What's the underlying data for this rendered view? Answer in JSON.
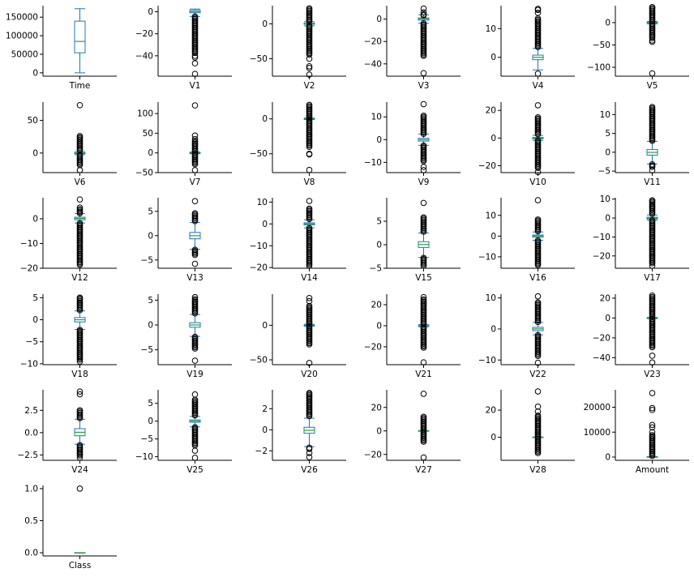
{
  "colors": {
    "box": "#1f77b4",
    "median": "#2ca02c",
    "flier": "#000000",
    "axis": "#000000"
  },
  "chart_data": [
    {
      "type": "box",
      "xlabel": "Time",
      "ylim": [
        -9000,
        181000
      ],
      "yticks": [
        0,
        50000,
        100000,
        150000
      ],
      "ytick_labels": [
        "0",
        "50000",
        "100000",
        "150000"
      ],
      "box": {
        "whislo": 0,
        "q1": 54000,
        "med": 84700,
        "q3": 139300,
        "whishi": 172800
      },
      "fliers": []
    },
    {
      "type": "box",
      "xlabel": "V1",
      "ylim": [
        -58.5,
        5.5
      ],
      "yticks": [
        0,
        -20,
        -40
      ],
      "ytick_labels": [
        "0",
        "−20",
        "−40"
      ],
      "box": {
        "whislo": -4.3,
        "q1": -0.92,
        "med": 0.02,
        "q3": 1.32,
        "whishi": 2.45
      },
      "fliers": [
        -56.4,
        -46.8,
        -41.5,
        -40
      ],
      "flier_ranges": [
        [
          -38,
          -4.4
        ]
      ]
    },
    {
      "type": "box",
      "xlabel": "V2",
      "ylim": [
        -75,
        26
      ],
      "yticks": [
        0,
        -50
      ],
      "ytick_labels": [
        "0",
        "−50"
      ],
      "box": {
        "whislo": -2.9,
        "q1": -0.6,
        "med": 0.07,
        "q3": 0.8,
        "whishi": 3.0
      },
      "fliers": [
        -72.7,
        -63.3,
        -60.8,
        -50
      ],
      "flier_ranges": [
        [
          -45,
          -3
        ],
        [
          3.1,
          22.1
        ]
      ]
    },
    {
      "type": "box",
      "xlabel": "V3",
      "ylim": [
        -51,
        12
      ],
      "yticks": [
        0,
        -20,
        -40
      ],
      "ytick_labels": [
        "0",
        "−20",
        "−40"
      ],
      "box": {
        "whislo": -3.7,
        "q1": -0.89,
        "med": 0.18,
        "q3": 1.03,
        "whishi": 3.9
      },
      "fliers": [
        -48.3,
        9.4,
        6,
        4.1,
        3.4
      ],
      "flier_ranges": [
        [
          -33,
          -3.8
        ]
      ]
    },
    {
      "type": "box",
      "xlabel": "V4",
      "ylim": [
        -6.6,
        18
      ],
      "yticks": [
        10,
        0
      ],
      "ytick_labels": [
        "10",
        "0"
      ],
      "box": {
        "whislo": -4.4,
        "q1": -0.85,
        "med": -0.02,
        "q3": 0.74,
        "whishi": 3.1
      },
      "fliers": [
        16.9,
        16.5,
        15.5,
        -5.7
      ],
      "flier_ranges": [
        [
          3.2,
          13.5
        ]
      ]
    },
    {
      "type": "box",
      "xlabel": "V5",
      "ylim": [
        -120,
        38
      ],
      "yticks": [
        0,
        -50,
        -100
      ],
      "ytick_labels": [
        "0",
        "−50",
        "−100"
      ],
      "box": {
        "whislo": -2.6,
        "q1": -0.69,
        "med": -0.05,
        "q3": 0.61,
        "whishi": 2.5
      },
      "fliers": [
        -113.7,
        -43,
        -40
      ],
      "flier_ranges": [
        [
          -35,
          -2.7
        ],
        [
          2.6,
          34.8
        ]
      ]
    },
    {
      "type": "box",
      "xlabel": "V6",
      "ylim": [
        -30,
        78
      ],
      "yticks": [
        50,
        0
      ],
      "ytick_labels": [
        "50",
        "0"
      ],
      "box": {
        "whislo": -2.5,
        "q1": -0.77,
        "med": -0.27,
        "q3": 0.4,
        "whishi": 2.2
      },
      "fliers": [
        73.3,
        -26.2
      ],
      "flier_ranges": [
        [
          -20,
          -2.6
        ],
        [
          2.3,
          26
        ]
      ]
    },
    {
      "type": "box",
      "xlabel": "V7",
      "ylim": [
        -50,
        129
      ],
      "yticks": [
        100,
        50,
        0,
        -50
      ],
      "ytick_labels": [
        "100",
        "50",
        "0",
        "−50"
      ],
      "box": {
        "whislo": -2.2,
        "q1": -0.55,
        "med": 0.04,
        "q3": 0.57,
        "whishi": 2.3
      },
      "fliers": [
        120.6,
        44,
        35,
        -43.6
      ],
      "flier_ranges": [
        [
          -30,
          -2.3
        ],
        [
          2.4,
          30
        ]
      ]
    },
    {
      "type": "box",
      "xlabel": "V8",
      "ylim": [
        -77,
        24
      ],
      "yticks": [
        0,
        -50
      ],
      "ytick_labels": [
        "0",
        "−50"
      ],
      "box": {
        "whislo": -1.0,
        "q1": -0.21,
        "med": 0.02,
        "q3": 0.33,
        "whishi": 1.1
      },
      "fliers": [
        -73.2,
        -50.9,
        -50
      ],
      "flier_ranges": [
        [
          -41,
          -1.1
        ],
        [
          1.2,
          20
        ]
      ]
    },
    {
      "type": "box",
      "xlabel": "V9",
      "ylim": [
        -14.5,
        16.5
      ],
      "yticks": [
        10,
        0,
        -10
      ],
      "ytick_labels": [
        "10",
        "0",
        "−10"
      ],
      "box": {
        "whislo": -2.5,
        "q1": -0.64,
        "med": -0.05,
        "q3": 0.6,
        "whishi": 2.45
      },
      "fliers": [
        15.6,
        -13.4,
        -12
      ],
      "flier_ranges": [
        [
          -10,
          -2.6
        ],
        [
          2.5,
          10.5
        ]
      ]
    },
    {
      "type": "box",
      "xlabel": "V10",
      "ylim": [
        -25,
        26
      ],
      "yticks": [
        20,
        0,
        -20
      ],
      "ytick_labels": [
        "20",
        "0",
        "−20"
      ],
      "box": {
        "whislo": -1.7,
        "q1": -0.54,
        "med": -0.09,
        "q3": 0.45,
        "whishi": 1.9
      },
      "fliers": [
        23.7,
        -24.6
      ],
      "flier_ranges": [
        [
          -22,
          -1.8
        ],
        [
          2,
          15
        ]
      ]
    },
    {
      "type": "box",
      "xlabel": "V11",
      "ylim": [
        -5.4,
        13.3
      ],
      "yticks": [
        10,
        5,
        0,
        -5
      ],
      "ytick_labels": [
        "10",
        "5",
        "0",
        "−5"
      ],
      "box": {
        "whislo": -3.1,
        "q1": -0.76,
        "med": -0.03,
        "q3": 0.74,
        "whishi": 2.9
      },
      "fliers": [
        -4.8
      ],
      "flier_ranges": [
        [
          -4.2,
          -3.2
        ],
        [
          3,
          12
        ]
      ]
    },
    {
      "type": "box",
      "xlabel": "V12",
      "ylim": [
        -20,
        8.5
      ],
      "yticks": [
        0,
        -10,
        -20
      ],
      "ytick_labels": [
        "0",
        "−10",
        "−20"
      ],
      "box": {
        "whislo": -1.7,
        "q1": -0.4,
        "med": 0.14,
        "q3": 0.62,
        "whishi": 2.1
      },
      "fliers": [
        7.8,
        4.5
      ],
      "flier_ranges": [
        [
          -18.7,
          -1.8
        ],
        [
          2.2,
          3.8
        ]
      ]
    },
    {
      "type": "box",
      "xlabel": "V13",
      "ylim": [
        -6.7,
        7.8
      ],
      "yticks": [
        5,
        0,
        -5
      ],
      "ytick_labels": [
        "5",
        "0",
        "−5"
      ],
      "box": {
        "whislo": -2.8,
        "q1": -0.65,
        "med": -0.01,
        "q3": 0.66,
        "whishi": 2.7
      },
      "fliers": [
        7.1,
        -5.8
      ],
      "flier_ranges": [
        [
          2.9,
          4.6
        ],
        [
          -4.2,
          -2.9
        ]
      ]
    },
    {
      "type": "box",
      "xlabel": "V14",
      "ylim": [
        -20.3,
        12
      ],
      "yticks": [
        10,
        0,
        -10,
        -20
      ],
      "ytick_labels": [
        "10",
        "0",
        "−10",
        "−20"
      ],
      "box": {
        "whislo": -1.8,
        "q1": -0.43,
        "med": 0.05,
        "q3": 0.49,
        "whishi": 1.9
      },
      "fliers": [
        10.5,
        -19.2
      ],
      "flier_ranges": [
        [
          -19,
          -1.9
        ],
        [
          2,
          7
        ]
      ]
    },
    {
      "type": "box",
      "xlabel": "V15",
      "ylim": [
        -5,
        10
      ],
      "yticks": [
        5,
        0,
        -5
      ],
      "ytick_labels": [
        "5",
        "0",
        "−5"
      ],
      "box": {
        "whislo": -2.7,
        "q1": -0.58,
        "med": 0.05,
        "q3": 0.65,
        "whishi": 2.5
      },
      "fliers": [
        8.9
      ],
      "flier_ranges": [
        [
          2.6,
          5.8
        ],
        [
          -4.5,
          -2.8
        ]
      ]
    },
    {
      "type": "box",
      "xlabel": "V16",
      "ylim": [
        -15.5,
        18.5
      ],
      "yticks": [
        10,
        0,
        -10
      ],
      "ytick_labels": [
        "10",
        "0",
        "−10"
      ],
      "box": {
        "whislo": -2.0,
        "q1": -0.47,
        "med": 0.07,
        "q3": 0.52,
        "whishi": 2.0
      },
      "fliers": [
        17.3
      ],
      "flier_ranges": [
        [
          2.1,
          8
        ],
        [
          -14,
          -2.1
        ]
      ]
    },
    {
      "type": "box",
      "xlabel": "V17",
      "ylim": [
        -26.5,
        10.7
      ],
      "yticks": [
        10,
        0,
        -10,
        -20
      ],
      "ytick_labels": [
        "10",
        "0",
        "−10",
        "−20"
      ],
      "box": {
        "whislo": -1.2,
        "q1": -0.48,
        "med": -0.07,
        "q3": 0.4,
        "whishi": 1.6
      },
      "fliers": [
        -25.2,
        9.3
      ],
      "flier_ranges": [
        [
          -24,
          -1.3
        ],
        [
          1.7,
          9
        ]
      ]
    },
    {
      "type": "box",
      "xlabel": "V18",
      "ylim": [
        -10.2,
        5.8
      ],
      "yticks": [
        5,
        0,
        -5,
        -10
      ],
      "ytick_labels": [
        "5",
        "0",
        "−5",
        "−10"
      ],
      "box": {
        "whislo": -2.2,
        "q1": -0.5,
        "med": 0,
        "q3": 0.5,
        "whishi": 2.0
      },
      "fliers": [
        5.0,
        -9.5
      ],
      "flier_ranges": [
        [
          2.1,
          4.8
        ],
        [
          -9.3,
          -2.3
        ]
      ]
    },
    {
      "type": "box",
      "xlabel": "V19",
      "ylim": [
        -8,
        6.2
      ],
      "yticks": [
        5,
        0,
        -5
      ],
      "ytick_labels": [
        "5",
        "0",
        "−5"
      ],
      "box": {
        "whislo": -2.3,
        "q1": -0.46,
        "med": 0.0,
        "q3": 0.46,
        "whishi": 2.1
      },
      "fliers": [
        5.6,
        -7.2
      ],
      "flier_ranges": [
        [
          2.2,
          5.2
        ],
        [
          -5,
          -2.4
        ]
      ]
    },
    {
      "type": "box",
      "xlabel": "V20",
      "ylim": [
        -57,
        45
      ],
      "yticks": [
        0,
        -50
      ],
      "ytick_labels": [
        "0",
        "−50"
      ],
      "box": {
        "whislo": -1.3,
        "q1": -0.21,
        "med": -0.06,
        "q3": 0.13,
        "whishi": 1.4
      },
      "fliers": [
        39.4,
        35,
        -54.5
      ],
      "flier_ranges": [
        [
          1.5,
          28
        ],
        [
          -28,
          -1.4
        ]
      ]
    },
    {
      "type": "box",
      "xlabel": "V21",
      "ylim": [
        -37,
        30
      ],
      "yticks": [
        20,
        0,
        -20
      ],
      "ytick_labels": [
        "20",
        "0",
        "−20"
      ],
      "box": {
        "whislo": -1.0,
        "q1": -0.23,
        "med": -0.03,
        "q3": 0.19,
        "whishi": 1.2
      },
      "fliers": [
        27.2,
        -34.8
      ],
      "flier_ranges": [
        [
          1.3,
          25
        ],
        [
          -22,
          -1.1
        ]
      ]
    },
    {
      "type": "box",
      "xlabel": "V22",
      "ylim": [
        -11.5,
        11.2
      ],
      "yticks": [
        10,
        0,
        -10
      ],
      "ytick_labels": [
        "10",
        "0",
        "−10"
      ],
      "box": {
        "whislo": -1.9,
        "q1": -0.54,
        "med": 0.01,
        "q3": 0.53,
        "whishi": 2.1
      },
      "fliers": [
        10.5,
        -10.9
      ],
      "flier_ranges": [
        [
          2.2,
          8.5
        ],
        [
          -8.9,
          -2
        ]
      ]
    },
    {
      "type": "box",
      "xlabel": "V23",
      "ylim": [
        -47,
        24
      ],
      "yticks": [
        20,
        0,
        -20,
        -40
      ],
      "ytick_labels": [
        "20",
        "0",
        "−20",
        "−40"
      ],
      "box": {
        "whislo": -0.6,
        "q1": -0.16,
        "med": -0.01,
        "q3": 0.15,
        "whishi": 0.6
      },
      "fliers": [
        22.5,
        -44.8,
        -38
      ],
      "flier_ranges": [
        [
          0.7,
          21
        ],
        [
          -30,
          -0.7
        ]
      ]
    },
    {
      "type": "box",
      "xlabel": "V24",
      "ylim": [
        -3.1,
        4.8
      ],
      "yticks": [
        2.5,
        0,
        -2.5
      ],
      "ytick_labels": [
        "2.5",
        "0.0",
        "−2.5"
      ],
      "box": {
        "whislo": -1.3,
        "q1": -0.35,
        "med": 0.04,
        "q3": 0.44,
        "whishi": 1.5
      },
      "fliers": [
        4.6,
        4.3,
        -2.8
      ],
      "flier_ranges": [
        [
          1.6,
          2.5
        ],
        [
          -2.7,
          -1.4
        ]
      ]
    },
    {
      "type": "box",
      "xlabel": "V25",
      "ylim": [
        -11,
        8.8
      ],
      "yticks": [
        5,
        0,
        -5,
        -10
      ],
      "ytick_labels": [
        "5",
        "0",
        "−5",
        "−10"
      ],
      "box": {
        "whislo": -1.6,
        "q1": -0.32,
        "med": 0.02,
        "q3": 0.35,
        "whishi": 1.3
      },
      "fliers": [
        7.5,
        -10.3,
        -8.3
      ],
      "flier_ranges": [
        [
          1.4,
          6
        ],
        [
          -7,
          -1.7
        ]
      ]
    },
    {
      "type": "box",
      "xlabel": "V26",
      "ylim": [
        -2.9,
        3.8
      ],
      "yticks": [
        2,
        0,
        -2
      ],
      "ytick_labels": [
        "2",
        "0",
        "−2"
      ],
      "box": {
        "whislo": -1.6,
        "q1": -0.33,
        "med": -0.05,
        "q3": 0.24,
        "whishi": 1.1
      },
      "fliers": [
        3.5,
        -2.6,
        -2.2
      ],
      "flier_ranges": [
        [
          1.2,
          3.4
        ],
        [
          -1.9,
          -1.7
        ]
      ]
    },
    {
      "type": "box",
      "xlabel": "V27",
      "ylim": [
        -25,
        35
      ],
      "yticks": [
        20,
        0,
        -20
      ],
      "ytick_labels": [
        "20",
        "0",
        "−20"
      ],
      "box": {
        "whislo": -0.2,
        "q1": -0.07,
        "med": 0.0,
        "q3": 0.09,
        "whishi": 0.25
      },
      "fliers": [
        31.6,
        -22.6
      ],
      "flier_ranges": [
        [
          0.3,
          12
        ],
        [
          -9.8,
          -0.3
        ]
      ]
    },
    {
      "type": "box",
      "xlabel": "V28",
      "ylim": [
        -17,
        35
      ],
      "yticks": [
        20,
        0
      ],
      "ytick_labels": [
        "20",
        "0"
      ],
      "box": {
        "whislo": -0.15,
        "q1": -0.05,
        "med": 0.01,
        "q3": 0.08,
        "whishi": 0.2
      },
      "fliers": [
        33.8,
        22.6,
        19
      ],
      "flier_ranges": [
        [
          0.25,
          15.9
        ],
        [
          -11.7,
          -0.2
        ]
      ]
    },
    {
      "type": "box",
      "xlabel": "Amount",
      "ylim": [
        -1300,
        27000
      ],
      "yticks": [
        20000,
        10000,
        0
      ],
      "ytick_labels": [
        "20000",
        "10000",
        "0"
      ],
      "box": {
        "whislo": 0,
        "q1": 5.6,
        "med": 22,
        "q3": 77.2,
        "whishi": 185
      },
      "fliers": [
        25691,
        19656,
        18910,
        12910,
        11898,
        10000
      ],
      "flier_ranges": [
        [
          186,
          8790
        ]
      ]
    },
    {
      "type": "box",
      "xlabel": "Class",
      "ylim": [
        -0.05,
        1.05
      ],
      "yticks": [
        1.0,
        0.5,
        0.0
      ],
      "ytick_labels": [
        "1.0",
        "0.5",
        "0.0"
      ],
      "box": {
        "whislo": 0,
        "q1": 0,
        "med": 0,
        "q3": 0,
        "whishi": 0
      },
      "fliers": [
        1.0
      ]
    }
  ]
}
